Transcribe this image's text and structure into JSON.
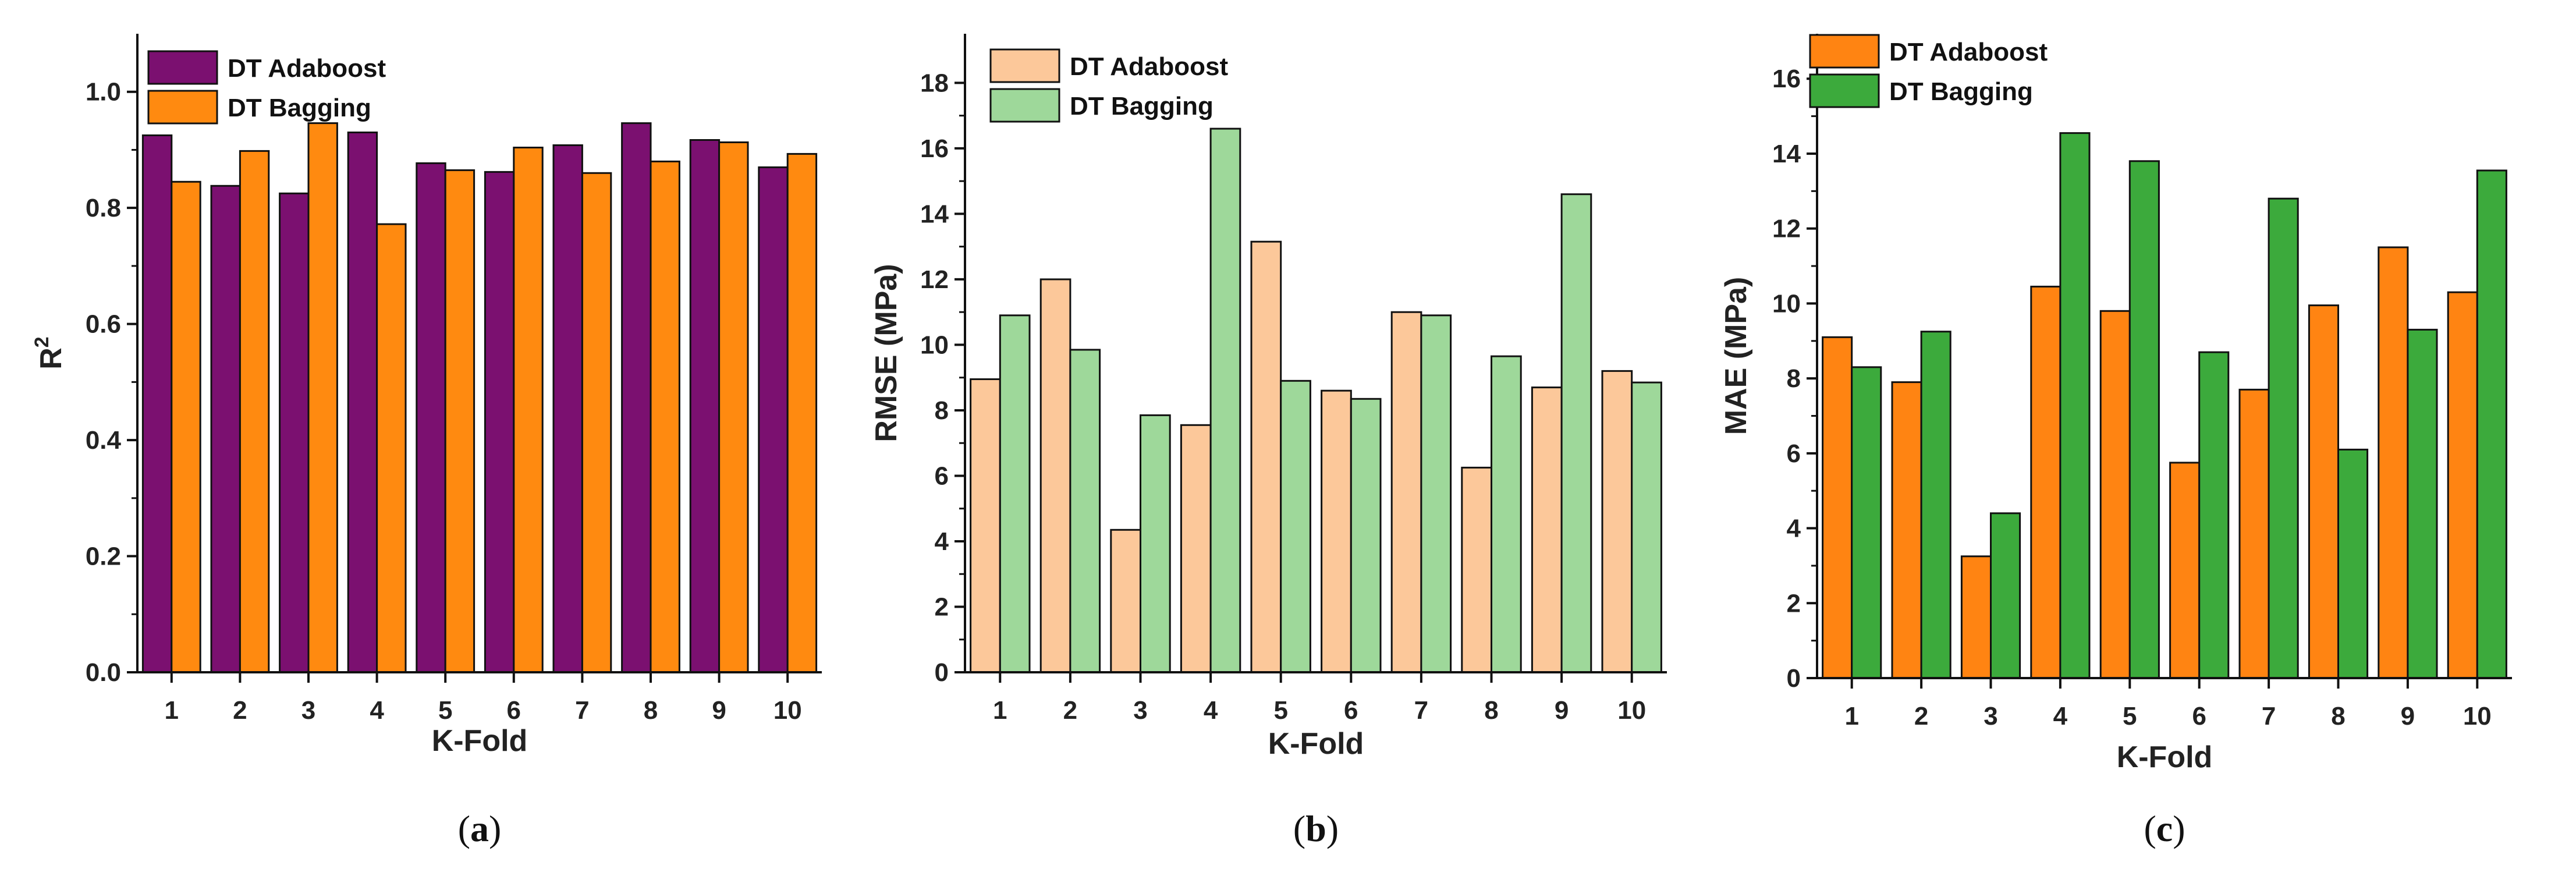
{
  "chart_data": [
    {
      "type": "bar",
      "panel_label": "a",
      "xlabel": "K-Fold",
      "ylabel": "R",
      "ylabel_superscript": "2",
      "categories": [
        "1",
        "2",
        "3",
        "4",
        "5",
        "6",
        "7",
        "8",
        "9",
        "10"
      ],
      "ylim": [
        0,
        1.1
      ],
      "yticks": [
        "0.0",
        "0.2",
        "0.4",
        "0.6",
        "0.8",
        "1.0"
      ],
      "ytick_values": [
        0,
        0.2,
        0.4,
        0.6,
        0.8,
        1.0
      ],
      "legend_position": "top-left",
      "series": [
        {
          "name": "DT Adaboost",
          "color": "#7b1070",
          "values": [
            0.925,
            0.838,
            0.825,
            0.93,
            0.877,
            0.862,
            0.908,
            0.946,
            0.917,
            0.87
          ]
        },
        {
          "name": "DT Bagging",
          "color": "#ff8a10",
          "values": [
            0.845,
            0.898,
            0.946,
            0.772,
            0.865,
            0.904,
            0.86,
            0.88,
            0.913,
            0.893
          ]
        }
      ]
    },
    {
      "type": "bar",
      "panel_label": "b",
      "xlabel": "K-Fold",
      "ylabel": "RMSE (MPa)",
      "categories": [
        "1",
        "2",
        "3",
        "4",
        "5",
        "6",
        "7",
        "8",
        "9",
        "10"
      ],
      "ylim": [
        0,
        19.5
      ],
      "yticks": [
        "0",
        "2",
        "4",
        "6",
        "8",
        "10",
        "12",
        "14",
        "16",
        "18"
      ],
      "ytick_values": [
        0,
        2,
        4,
        6,
        8,
        10,
        12,
        14,
        16,
        18
      ],
      "legend_position": "top-left",
      "series": [
        {
          "name": "DT Adaboost",
          "color": "#fcc89a",
          "values": [
            8.95,
            12.0,
            4.35,
            7.55,
            13.15,
            8.6,
            11.0,
            6.25,
            8.7,
            9.2
          ]
        },
        {
          "name": "DT Bagging",
          "color": "#9ed89a",
          "values": [
            10.9,
            9.85,
            7.85,
            16.6,
            8.9,
            8.35,
            10.9,
            9.65,
            14.6,
            8.85
          ]
        }
      ]
    },
    {
      "type": "bar",
      "panel_label": "c",
      "xlabel": "K-Fold",
      "ylabel": "MAE (MPa)",
      "categories": [
        "1",
        "2",
        "3",
        "4",
        "5",
        "6",
        "7",
        "8",
        "9",
        "10"
      ],
      "ylim": [
        0,
        17.2
      ],
      "yticks": [
        "0",
        "2",
        "4",
        "6",
        "8",
        "10",
        "12",
        "14",
        "16"
      ],
      "ytick_values": [
        0,
        2,
        4,
        6,
        8,
        10,
        12,
        14,
        16
      ],
      "legend_position": "top-left",
      "series": [
        {
          "name": "DT Adaboost",
          "color": "#ff8412",
          "values": [
            9.1,
            7.9,
            3.25,
            10.45,
            9.8,
            5.75,
            7.7,
            9.95,
            11.5,
            10.3
          ]
        },
        {
          "name": "DT Bagging",
          "color": "#3caa3c",
          "values": [
            8.3,
            9.25,
            4.4,
            14.55,
            13.8,
            8.7,
            12.8,
            6.1,
            9.3,
            13.55
          ]
        }
      ]
    }
  ]
}
